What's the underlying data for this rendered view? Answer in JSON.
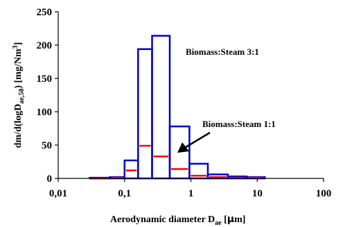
{
  "chart_data": {
    "type": "bar",
    "subtype": "histogram",
    "x_scale": "log",
    "xlim": [
      0.01,
      100
    ],
    "ylim": [
      0,
      250
    ],
    "x_ticks": [
      0.01,
      0.1,
      1,
      10,
      100
    ],
    "x_tick_labels": [
      "0,01",
      "0,1",
      "1",
      "10",
      "100"
    ],
    "y_ticks": [
      0,
      50,
      100,
      150,
      200,
      250
    ],
    "y_tick_labels": [
      "0",
      "50",
      "100",
      "150",
      "200",
      "250"
    ],
    "xlabel": {
      "main": "Aerodynamic diameter D",
      "sub": "ae",
      "unit_open": " [",
      "mu": "µ",
      "unit_close": "m]"
    },
    "ylabel": {
      "p1": "dm/d(logD",
      "sub": "ae,50",
      "p2": ") [mg/Nm",
      "sup": "3",
      "p3": "]"
    },
    "grid": false,
    "legend": "none",
    "bin_edges": [
      0.03,
      0.06,
      0.1,
      0.16,
      0.26,
      0.48,
      0.95,
      1.8,
      3.6,
      6.9,
      13.0
    ],
    "series": [
      {
        "name": "Biomass:Steam 3:1",
        "color": "#0000cc",
        "values": [
          1,
          2,
          27,
          194,
          214,
          78,
          22,
          6,
          3,
          2
        ]
      },
      {
        "name": "Biomass:Steam 1:1",
        "color": "#ff0000",
        "values": [
          0,
          1,
          12,
          49,
          33,
          14,
          4,
          2,
          1,
          1
        ]
      }
    ],
    "annotations": [
      {
        "text": "Biomass:Steam 3:1",
        "target_series": 0
      },
      {
        "text": "Biomass:Steam 1:1",
        "target_series": 1,
        "arrow": true
      }
    ]
  }
}
